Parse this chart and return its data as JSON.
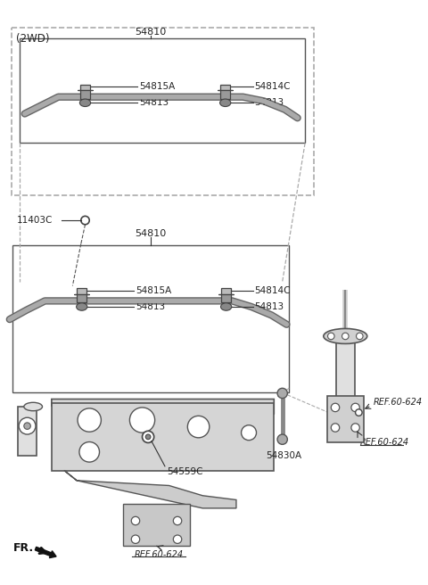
{
  "bg_color": "#ffffff",
  "lc": "#333333",
  "pc": "#888888",
  "tc": "#222222",
  "parts": {
    "54810_top": "54810",
    "54815A_top": "54815A",
    "54813_top1": "54813",
    "54814C_top": "54814C",
    "54813_top2": "54813",
    "54810_bot": "54810",
    "54815A_bot": "54815A",
    "54813_bot1": "54813",
    "54814C_bot": "54814C",
    "54813_bot2": "54813",
    "11403C": "11403C",
    "54559C": "54559C",
    "54830A": "54830A",
    "REF60624_1": "REF.60-624",
    "REF60624_2": "REF.60-624",
    "REF60624_3": "REF.60-624"
  },
  "label_2wd": "(2WD)",
  "label_fr": "FR."
}
